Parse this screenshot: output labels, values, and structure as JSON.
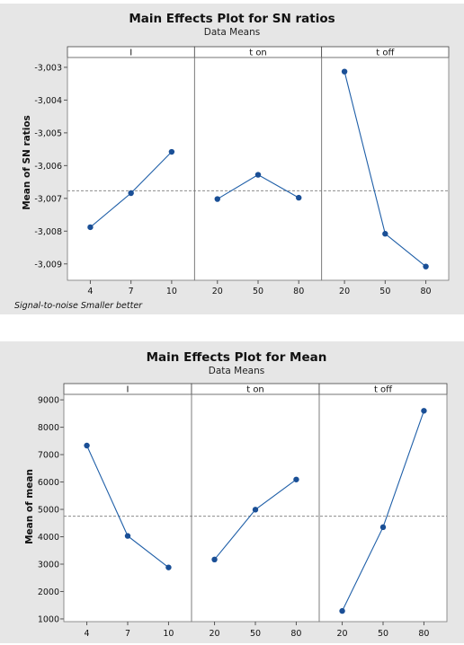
{
  "chart_data": [
    {
      "type": "line",
      "title": "Main Effects Plot for SN ratios",
      "subtitle": "Data Means",
      "ylabel": "Mean of SN ratios",
      "footnote": "Signal-to-noise Smaller better",
      "ylim": [
        -3.0095,
        -3.0027
      ],
      "yticks": [
        -3.003,
        -3.004,
        -3.005,
        -3.006,
        -3.007,
        -3.008,
        -3.009
      ],
      "ytick_labels": [
        "-3,003",
        "-3,004",
        "-3,005",
        "-3,006",
        "-3,007",
        "-3,008",
        "-3,009"
      ],
      "reference_line": -3.00677,
      "facets": [
        {
          "label": "I",
          "x": [
            "4",
            "7",
            "10"
          ],
          "values": [
            -3.00788,
            -3.00684,
            -3.00558
          ]
        },
        {
          "label": "t on",
          "x": [
            "20",
            "50",
            "80"
          ],
          "values": [
            -3.00702,
            -3.00628,
            -3.00698
          ]
        },
        {
          "label": "t off",
          "x": [
            "20",
            "50",
            "80"
          ],
          "values": [
            -3.00313,
            -3.00808,
            -3.00908
          ]
        }
      ],
      "colors": {
        "line": "#1f5fa8",
        "point": "#1a4f96",
        "reference": "#8c8c8c",
        "background": "#e6e6e6",
        "plot": "#ffffff"
      }
    },
    {
      "type": "line",
      "title": "Main Effects Plot for Mean",
      "subtitle": "Data Means",
      "ylabel": "Mean of mean",
      "ylim": [
        900,
        9200
      ],
      "yticks": [
        1000,
        2000,
        3000,
        4000,
        5000,
        6000,
        7000,
        8000,
        9000
      ],
      "ytick_labels": [
        "1000",
        "2000",
        "3000",
        "4000",
        "5000",
        "6000",
        "7000",
        "8000",
        "9000"
      ],
      "reference_line": 4750,
      "facets": [
        {
          "label": "I",
          "x": [
            "4",
            "7",
            "10"
          ],
          "values": [
            7330,
            4030,
            2880
          ]
        },
        {
          "label": "t on",
          "x": [
            "20",
            "50",
            "80"
          ],
          "values": [
            3170,
            4990,
            6090
          ]
        },
        {
          "label": "t off",
          "x": [
            "20",
            "50",
            "80"
          ],
          "values": [
            1290,
            4350,
            8600
          ]
        }
      ],
      "colors": {
        "line": "#1f5fa8",
        "point": "#1a4f96",
        "reference": "#8c8c8c",
        "background": "#e6e6e6",
        "plot": "#ffffff"
      }
    }
  ]
}
